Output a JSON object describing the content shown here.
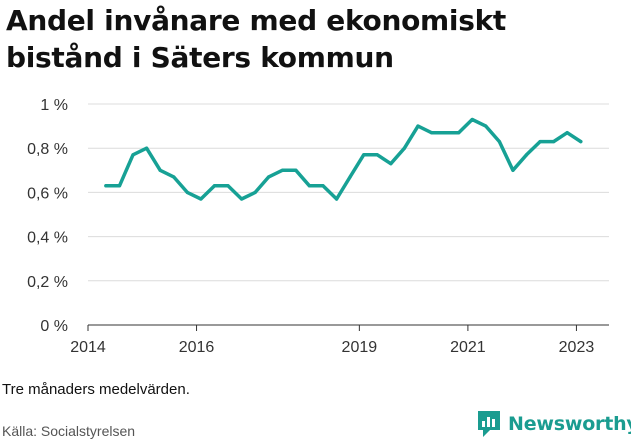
{
  "title": "Andel invånare med ekonomiskt bistånd i Säters kommun",
  "note": "Tre månaders medelvärden.",
  "source": "Källa: Socialstyrelsen",
  "brand": {
    "name": "Newsworthy",
    "icon": "newsworthy-chart-icon",
    "color": "#1a9c90"
  },
  "chart_data": {
    "type": "line",
    "title": "Andel invånare med ekonomiskt bistånd i Säters kommun",
    "xlabel": "",
    "ylabel": "",
    "color": "#17a195",
    "grid": true,
    "ylim": [
      0,
      1
    ],
    "yticks": [
      {
        "value": 0,
        "label": "0 %"
      },
      {
        "value": 0.2,
        "label": "0,2 %"
      },
      {
        "value": 0.4,
        "label": "0,4 %"
      },
      {
        "value": 0.6,
        "label": "0,6 %"
      },
      {
        "value": 0.8,
        "label": "0,8 %"
      },
      {
        "value": 1,
        "label": "1 %"
      }
    ],
    "xlim": [
      2014,
      2023.6
    ],
    "xticks": [
      {
        "value": 2014,
        "label": "2014"
      },
      {
        "value": 2016,
        "label": "2016"
      },
      {
        "value": 2019,
        "label": "2019"
      },
      {
        "value": 2021,
        "label": "2021"
      },
      {
        "value": 2023,
        "label": "2023"
      }
    ],
    "x": [
      2014.33,
      2014.58,
      2014.83,
      2015.08,
      2015.33,
      2015.58,
      2015.83,
      2016.08,
      2016.33,
      2016.58,
      2016.83,
      2017.08,
      2017.33,
      2017.58,
      2017.83,
      2018.08,
      2018.33,
      2018.58,
      2018.83,
      2019.08,
      2019.33,
      2019.58,
      2019.83,
      2020.08,
      2020.33,
      2020.58,
      2020.83,
      2021.08,
      2021.33,
      2021.58,
      2021.83,
      2022.08,
      2022.33,
      2022.58,
      2022.83,
      2023.08
    ],
    "y": [
      0.63,
      0.63,
      0.77,
      0.8,
      0.7,
      0.67,
      0.6,
      0.57,
      0.63,
      0.63,
      0.57,
      0.6,
      0.67,
      0.7,
      0.7,
      0.63,
      0.63,
      0.57,
      0.67,
      0.77,
      0.77,
      0.73,
      0.8,
      0.9,
      0.87,
      0.87,
      0.87,
      0.93,
      0.9,
      0.83,
      0.7,
      0.77,
      0.83,
      0.83,
      0.87,
      0.83
    ]
  }
}
